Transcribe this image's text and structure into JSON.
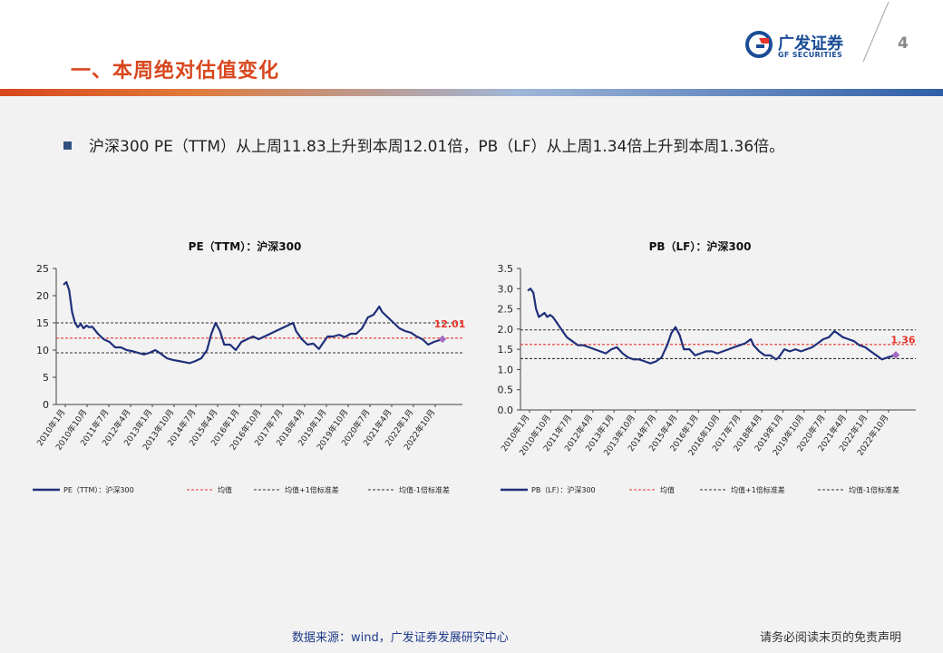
{
  "header": {
    "section_title": "一、本周绝对估值变化",
    "logo_cn": "广发证券",
    "logo_en": "GF SECURITIES",
    "page_number": "4"
  },
  "bullet_text": "沪深300 PE（TTM）从上周11.83上升到本周12.01倍，PB（LF）从上周1.34倍上升到本周1.36倍。",
  "footer": {
    "source": "数据来源：wind，广发证券发展研究中心",
    "disclaimer": "请务必阅读末页的免责声明"
  },
  "colors": {
    "series": "#1f2f7a",
    "mean": "#e8342a",
    "band": "#333333",
    "title_orange": "#d8471e"
  },
  "chart_data": [
    {
      "type": "line",
      "title": "PE（TTM）：沪深300",
      "ylim": [
        0,
        25
      ],
      "yticks": [
        "0",
        "5",
        "10",
        "15",
        "20",
        "25"
      ],
      "xticks": [
        "2010年1月",
        "2010年10月",
        "2011年7月",
        "2012年4月",
        "2013年1月",
        "2013年10月",
        "2014年7月",
        "2015年4月",
        "2016年1月",
        "2016年10月",
        "2017年7月",
        "2018年4月",
        "2019年1月",
        "2019年10月",
        "2020年7月",
        "2021年4月",
        "2022年1月",
        "2022年10月"
      ],
      "x": [
        2010.0,
        2010.1,
        2010.2,
        2010.3,
        2010.4,
        2010.5,
        2010.6,
        2010.7,
        2010.8,
        2010.9,
        2011.0,
        2011.2,
        2011.4,
        2011.6,
        2011.8,
        2012.0,
        2012.2,
        2012.4,
        2012.6,
        2012.8,
        2013.0,
        2013.2,
        2013.4,
        2013.6,
        2013.8,
        2014.0,
        2014.2,
        2014.4,
        2014.6,
        2014.8,
        2015.0,
        2015.15,
        2015.3,
        2015.45,
        2015.6,
        2015.8,
        2016.0,
        2016.2,
        2016.4,
        2016.6,
        2016.8,
        2017.0,
        2017.2,
        2017.4,
        2017.6,
        2017.8,
        2018.0,
        2018.1,
        2018.3,
        2018.5,
        2018.7,
        2018.9,
        2019.0,
        2019.2,
        2019.4,
        2019.6,
        2019.8,
        2020.0,
        2020.2,
        2020.4,
        2020.6,
        2020.8,
        2021.0,
        2021.1,
        2021.3,
        2021.5,
        2021.7,
        2021.9,
        2022.1,
        2022.3,
        2022.5,
        2022.7,
        2022.9,
        2023.1,
        2023.2
      ],
      "series": [
        {
          "name": "PE（TTM）：沪深300",
          "values": [
            22,
            22.5,
            21,
            17,
            15,
            14.2,
            14.8,
            14,
            14.5,
            14.2,
            14.3,
            13,
            12,
            11.5,
            10.5,
            10.5,
            10,
            9.8,
            9.5,
            9.2,
            9.5,
            10,
            9.3,
            8.5,
            8.2,
            8,
            7.8,
            7.6,
            8,
            8.5,
            10,
            13,
            15,
            13.5,
            11,
            11,
            10,
            11.5,
            12,
            12.5,
            12,
            12.5,
            13,
            13.5,
            14,
            14.5,
            15,
            13.5,
            12,
            11,
            11.2,
            10.2,
            11,
            12.5,
            12.5,
            12.8,
            12.4,
            13,
            13,
            14,
            16,
            16.5,
            18,
            17,
            16,
            15,
            14,
            13.5,
            13.2,
            12.5,
            12,
            11,
            11.5,
            11.83,
            12.01
          ]
        }
      ],
      "mean": 12.2,
      "upper": 15.0,
      "lower": 9.5,
      "end_label": "12.01",
      "legend": [
        "PE（TTM）：沪深300",
        "均值",
        "均值+1倍标准差",
        "均值-1倍标准差"
      ]
    },
    {
      "type": "line",
      "title": "PB（LF）：沪深300",
      "ylim": [
        0,
        3.5
      ],
      "yticks": [
        "0.0",
        "0.5",
        "1.0",
        "1.5",
        "2.0",
        "2.5",
        "3.0",
        "3.5"
      ],
      "xticks": [
        "2010年1月",
        "2010年10月",
        "2011年7月",
        "2012年4月",
        "2013年1月",
        "2013年10月",
        "2014年7月",
        "2015年4月",
        "2016年1月",
        "2016年10月",
        "2017年7月",
        "2018年4月",
        "2019年1月",
        "2019年10月",
        "2020年7月",
        "2021年4月",
        "2022年1月",
        "2022年10月"
      ],
      "x": [
        2010.0,
        2010.1,
        2010.2,
        2010.3,
        2010.4,
        2010.5,
        2010.6,
        2010.7,
        2010.8,
        2010.9,
        2011.0,
        2011.2,
        2011.4,
        2011.6,
        2011.8,
        2012.0,
        2012.2,
        2012.4,
        2012.6,
        2012.8,
        2013.0,
        2013.2,
        2013.4,
        2013.6,
        2013.8,
        2014.0,
        2014.2,
        2014.4,
        2014.6,
        2014.8,
        2015.0,
        2015.15,
        2015.3,
        2015.45,
        2015.6,
        2015.8,
        2016.0,
        2016.2,
        2016.4,
        2016.6,
        2016.8,
        2017.0,
        2017.2,
        2017.4,
        2017.6,
        2017.8,
        2018.0,
        2018.1,
        2018.3,
        2018.5,
        2018.7,
        2018.9,
        2019.0,
        2019.2,
        2019.4,
        2019.6,
        2019.8,
        2020.0,
        2020.2,
        2020.4,
        2020.6,
        2020.8,
        2021.0,
        2021.1,
        2021.3,
        2021.5,
        2021.7,
        2021.9,
        2022.1,
        2022.3,
        2022.5,
        2022.7,
        2022.9,
        2023.1,
        2023.2
      ],
      "series": [
        {
          "name": "PB（LF）：沪深300",
          "values": [
            2.95,
            3.0,
            2.9,
            2.5,
            2.3,
            2.35,
            2.4,
            2.3,
            2.35,
            2.3,
            2.2,
            2.0,
            1.8,
            1.7,
            1.6,
            1.6,
            1.55,
            1.5,
            1.45,
            1.4,
            1.5,
            1.55,
            1.4,
            1.3,
            1.25,
            1.25,
            1.2,
            1.15,
            1.2,
            1.3,
            1.6,
            1.9,
            2.05,
            1.85,
            1.5,
            1.5,
            1.35,
            1.4,
            1.45,
            1.45,
            1.4,
            1.45,
            1.5,
            1.55,
            1.6,
            1.65,
            1.75,
            1.6,
            1.45,
            1.35,
            1.35,
            1.25,
            1.3,
            1.5,
            1.45,
            1.5,
            1.45,
            1.5,
            1.55,
            1.65,
            1.75,
            1.8,
            1.95,
            1.9,
            1.8,
            1.75,
            1.7,
            1.6,
            1.55,
            1.45,
            1.35,
            1.25,
            1.3,
            1.34,
            1.36
          ]
        }
      ],
      "mean": 1.62,
      "upper": 1.98,
      "lower": 1.27,
      "end_label": "1.36",
      "legend": [
        "PB（LF）：沪深300",
        "均值",
        "均值+1倍标准差",
        "均值-1倍标准差"
      ]
    }
  ]
}
